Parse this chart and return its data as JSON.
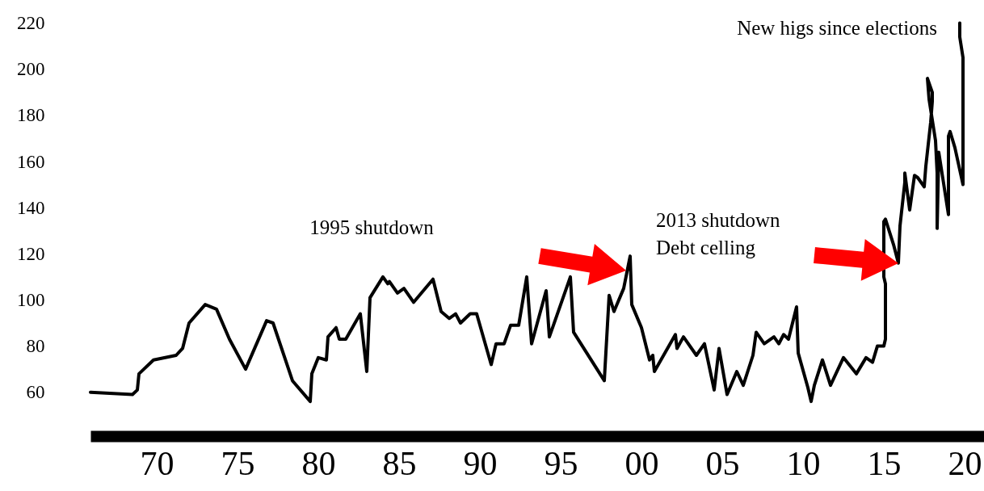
{
  "chart_data": {
    "type": "line",
    "x": [
      1965.9,
      1968.5,
      1968.8,
      1968.9,
      1969.8,
      1971.2,
      1971.6,
      1972.0,
      1973.0,
      1973.7,
      1974.5,
      1975.5,
      1976.8,
      1977.2,
      1978.4,
      1979.5,
      1979.6,
      1980.0,
      1980.5,
      1980.6,
      1981.1,
      1981.3,
      1981.7,
      1982.6,
      1983.0,
      1983.2,
      1984.0,
      1984.3,
      1984.4,
      1984.9,
      1985.3,
      1985.9,
      1987.1,
      1987.6,
      1988.1,
      1988.5,
      1988.8,
      1989.4,
      1989.8,
      1990.7,
      1991.0,
      1991.5,
      1991.9,
      1992.4,
      1992.9,
      1993.2,
      1994.1,
      1994.3,
      1995.6,
      1995.8,
      1997.7,
      1998.0,
      1998.3,
      1998.9,
      1999.3,
      1999.4,
      2000.0,
      2000.5,
      2000.7,
      2000.8,
      2002.1,
      2002.2,
      2002.6,
      2003.4,
      2003.9,
      2004.5,
      2004.8,
      2005.3,
      2005.9,
      2006.3,
      2006.9,
      2007.1,
      2007.6,
      2008.2,
      2008.5,
      2008.8,
      2009.1,
      2009.6,
      2009.7,
      2010.3,
      2010.5,
      2010.7,
      2011.2,
      2011.7,
      2012.5,
      2013.3,
      2013.9,
      2014.3,
      2014.6,
      2015.0,
      2015.1,
      2015.1,
      2015.0,
      2015.0,
      2015.1,
      2015.6,
      2015.9,
      2016.0,
      2016.3,
      2016.3,
      2016.6,
      2016.9,
      2017.1,
      2017.5,
      2017.6,
      2017.9,
      2018.0,
      2018.0,
      2017.7,
      2017.8,
      2018.0,
      2018.2,
      2018.3,
      2018.3,
      2018.4,
      2018.6,
      2019.0,
      2019.0,
      2019.1,
      2019.4,
      2019.9,
      2019.9,
      2019.7,
      2019.7
    ],
    "series": [
      {
        "color": "#000000",
        "values": [
          60,
          59,
          61,
          68,
          74,
          76,
          79,
          90,
          98,
          96,
          83,
          70,
          91,
          90,
          65,
          56,
          68,
          75,
          74,
          84,
          88,
          83,
          83,
          94,
          69,
          101,
          110,
          107,
          108,
          103,
          105,
          99,
          109,
          95,
          92,
          94,
          90,
          94,
          94,
          72,
          81,
          81,
          89,
          89,
          110,
          81,
          104,
          84,
          110,
          86,
          65,
          102,
          95,
          105,
          119,
          98,
          88,
          74,
          76,
          69,
          85,
          79,
          84,
          76,
          81,
          61,
          79,
          59,
          69,
          63,
          76,
          86,
          81,
          84,
          81,
          85,
          83,
          97,
          77,
          62,
          56,
          63,
          74,
          63,
          75,
          68,
          75,
          73,
          80,
          80,
          83,
          107,
          110,
          134,
          135,
          124,
          116,
          132,
          151,
          155,
          139,
          154,
          153,
          149,
          158,
          177,
          186,
          190,
          196,
          187,
          178,
          169,
          155,
          131,
          164,
          155,
          137,
          171,
          173,
          166,
          150,
          205,
          214,
          220
        ]
      }
    ],
    "xlim": [
      1965.9,
      2021.2
    ],
    "ylim": [
      41,
      230
    ],
    "xticks": [
      {
        "value": 1970,
        "label": "70"
      },
      {
        "value": 1975,
        "label": "75"
      },
      {
        "value": 1980,
        "label": "80"
      },
      {
        "value": 1985,
        "label": "85"
      },
      {
        "value": 1990,
        "label": "90"
      },
      {
        "value": 1995,
        "label": "95"
      },
      {
        "value": 2000,
        "label": "00"
      },
      {
        "value": 2005,
        "label": "05"
      },
      {
        "value": 2010,
        "label": "10"
      },
      {
        "value": 2015,
        "label": "15"
      },
      {
        "value": 2020,
        "label": "20"
      }
    ],
    "yticks": [
      60,
      80,
      100,
      120,
      140,
      160,
      180,
      200,
      220
    ],
    "annotations": [
      "1995  shutdown",
      "2013 shutdown\nDebt celling",
      {
        "text": "New higs since elections",
        "x": 2019.7,
        "y": 220
      }
    ],
    "line_style": "solid"
  }
}
